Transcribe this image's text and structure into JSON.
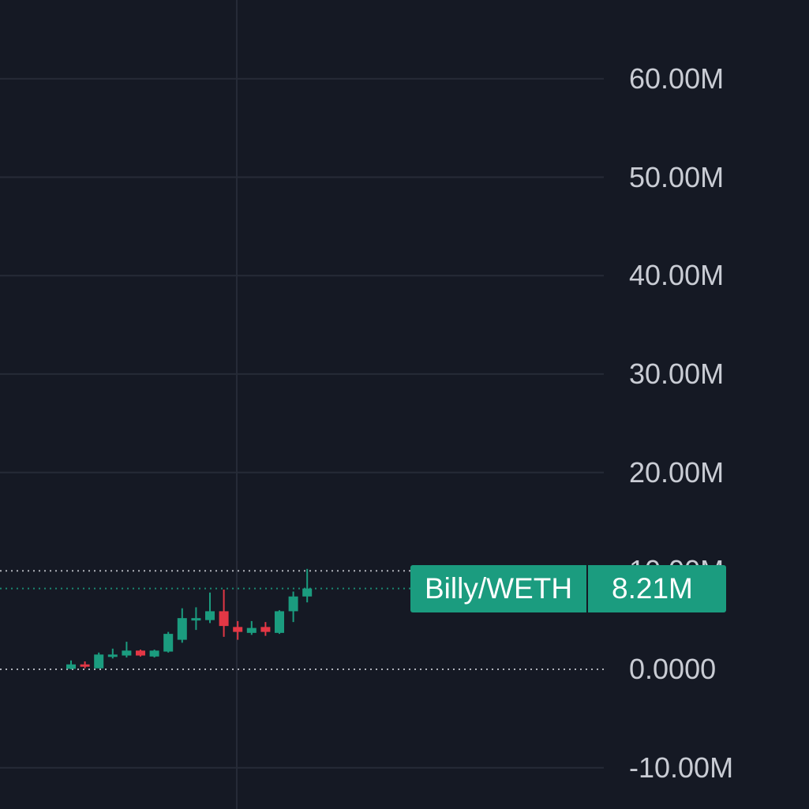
{
  "chart_data": {
    "type": "candlestick",
    "title": "",
    "ylim": [
      -10000000,
      65000000
    ],
    "y_ticks": [
      60000000,
      50000000,
      40000000,
      30000000,
      20000000,
      10000000,
      0,
      -10000000
    ],
    "y_tick_labels": [
      "60.00M",
      "50.00M",
      "40.00M",
      "30.00M",
      "20.00M",
      "10.00M",
      "0.0000",
      "-10.00M"
    ],
    "grid": true,
    "dotted_lines": [
      {
        "value": 10000000,
        "color": "#c9ccd4"
      },
      {
        "value": 8210000,
        "color": "#1b9c7f"
      },
      {
        "value": 0,
        "color": "#c9ccd4"
      }
    ],
    "candles": [
      {
        "o": 0.05,
        "h": 0.9,
        "c": 0.5,
        "l": 0.0
      },
      {
        "o": 0.5,
        "h": 0.8,
        "c": 0.3,
        "l": 0.1
      },
      {
        "o": 0.1,
        "h": 1.7,
        "c": 1.5,
        "l": 0.1
      },
      {
        "o": 1.3,
        "h": 2.1,
        "c": 1.5,
        "l": 1.1
      },
      {
        "o": 1.4,
        "h": 2.8,
        "c": 1.9,
        "l": 1.2
      },
      {
        "o": 1.9,
        "h": 2.0,
        "c": 1.4,
        "l": 1.3
      },
      {
        "o": 1.3,
        "h": 2.0,
        "c": 1.9,
        "l": 1.2
      },
      {
        "o": 1.8,
        "h": 3.8,
        "c": 3.6,
        "l": 1.7
      },
      {
        "o": 3.0,
        "h": 6.2,
        "c": 5.2,
        "l": 2.7
      },
      {
        "o": 5.1,
        "h": 6.3,
        "c": 5.2,
        "l": 4.0
      },
      {
        "o": 5.0,
        "h": 7.8,
        "c": 5.9,
        "l": 4.7
      },
      {
        "o": 5.9,
        "h": 8.1,
        "c": 4.4,
        "l": 3.3
      },
      {
        "o": 4.3,
        "h": 4.9,
        "c": 3.8,
        "l": 3.0
      },
      {
        "o": 3.7,
        "h": 4.9,
        "c": 4.2,
        "l": 3.5
      },
      {
        "o": 4.3,
        "h": 4.8,
        "c": 3.8,
        "l": 3.4
      },
      {
        "o": 3.7,
        "h": 6.0,
        "c": 5.9,
        "l": 3.6
      },
      {
        "o": 5.9,
        "h": 7.9,
        "c": 7.4,
        "l": 4.8
      },
      {
        "o": 7.4,
        "h": 10.2,
        "c": 8.21,
        "l": 6.8
      }
    ],
    "pair_label": "Billy/WETH",
    "last_price_label": "8.21M"
  },
  "colors": {
    "background": "#151924",
    "grid": "#262b37",
    "up": "#1b9c7f",
    "down": "#e33745",
    "text": "#c9ccd4"
  }
}
